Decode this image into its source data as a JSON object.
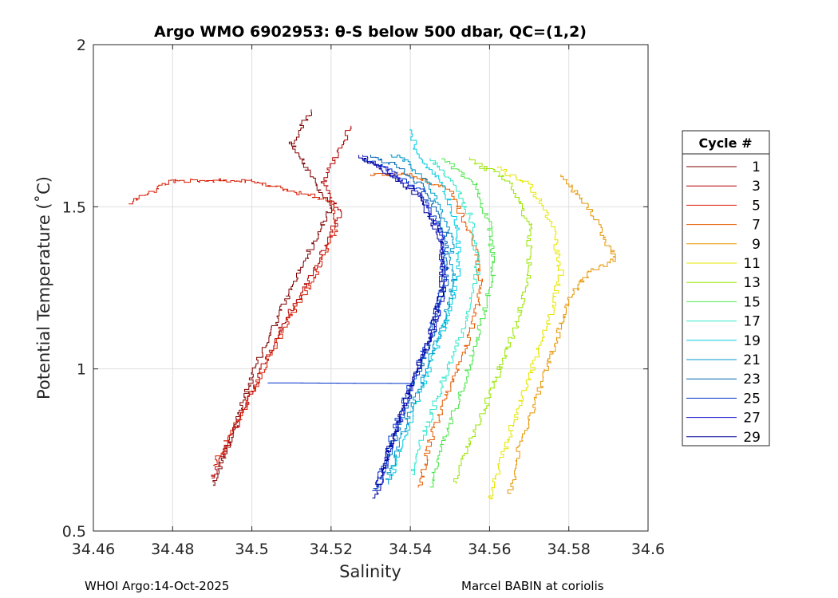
{
  "chart_data": {
    "type": "line",
    "title": "Argo WMO 6902953: θ-S below 500 dbar,  QC=(1,2)",
    "xlabel": "Salinity",
    "ylabel": "Potential Temperature (˚C)",
    "xlim": [
      34.46,
      34.6
    ],
    "ylim": [
      0.5,
      2.0
    ],
    "xticks": [
      "34.46",
      "34.48",
      "34.5",
      "34.52",
      "34.54",
      "34.56",
      "34.58",
      "34.6"
    ],
    "yticks": [
      "0.5",
      "1",
      "1.5",
      "2"
    ],
    "grid": true,
    "legend": {
      "title": "Cycle #",
      "position": "outside-right"
    },
    "series": [
      {
        "name": "1",
        "color": "#7f0000",
        "points": [
          [
            34.49,
            0.64
          ],
          [
            34.495,
            0.8
          ],
          [
            34.5,
            0.98
          ],
          [
            34.505,
            1.12
          ],
          [
            34.51,
            1.25
          ],
          [
            34.515,
            1.38
          ],
          [
            34.52,
            1.5
          ],
          [
            34.515,
            1.6
          ],
          [
            34.51,
            1.7
          ],
          [
            34.515,
            1.8
          ]
        ]
      },
      {
        "name": "3",
        "color": "#b30000",
        "points": [
          [
            34.49,
            0.66
          ],
          [
            34.496,
            0.82
          ],
          [
            34.502,
            0.99
          ],
          [
            34.508,
            1.14
          ],
          [
            34.514,
            1.27
          ],
          [
            34.519,
            1.39
          ],
          [
            34.522,
            1.48
          ],
          [
            34.518,
            1.58
          ],
          [
            34.522,
            1.68
          ],
          [
            34.525,
            1.75
          ]
        ]
      },
      {
        "name": "5",
        "color": "#d91a00",
        "points": [
          [
            34.49,
            0.7
          ],
          [
            34.497,
            0.85
          ],
          [
            34.503,
            1.0
          ],
          [
            34.509,
            1.15
          ],
          [
            34.516,
            1.29
          ],
          [
            34.521,
            1.42
          ],
          [
            34.52,
            1.52
          ],
          [
            34.5,
            1.58
          ],
          [
            34.48,
            1.58
          ],
          [
            34.469,
            1.51
          ]
        ]
      },
      {
        "name": "7",
        "color": "#e65c00",
        "points": [
          [
            34.542,
            0.63
          ],
          [
            34.545,
            0.78
          ],
          [
            34.55,
            0.95
          ],
          [
            34.555,
            1.1
          ],
          [
            34.558,
            1.25
          ],
          [
            34.556,
            1.4
          ],
          [
            34.55,
            1.55
          ],
          [
            34.54,
            1.6
          ],
          [
            34.53,
            1.6
          ]
        ]
      },
      {
        "name": "9",
        "color": "#e69500",
        "points": [
          [
            34.565,
            0.62
          ],
          [
            34.568,
            0.78
          ],
          [
            34.573,
            0.95
          ],
          [
            34.577,
            1.1
          ],
          [
            34.58,
            1.22
          ],
          [
            34.585,
            1.3
          ],
          [
            34.592,
            1.34
          ],
          [
            34.585,
            1.5
          ],
          [
            34.578,
            1.6
          ]
        ]
      },
      {
        "name": "11",
        "color": "#e6e600",
        "points": [
          [
            34.56,
            0.6
          ],
          [
            34.565,
            0.8
          ],
          [
            34.57,
            0.98
          ],
          [
            34.575,
            1.15
          ],
          [
            34.578,
            1.3
          ],
          [
            34.576,
            1.45
          ],
          [
            34.57,
            1.57
          ],
          [
            34.562,
            1.62
          ]
        ]
      },
      {
        "name": "13",
        "color": "#99e600",
        "points": [
          [
            34.551,
            0.65
          ],
          [
            34.556,
            0.8
          ],
          [
            34.562,
            0.98
          ],
          [
            34.567,
            1.15
          ],
          [
            34.57,
            1.3
          ],
          [
            34.57,
            1.45
          ],
          [
            34.565,
            1.58
          ],
          [
            34.555,
            1.65
          ]
        ]
      },
      {
        "name": "15",
        "color": "#4ce64c",
        "points": [
          [
            34.545,
            0.64
          ],
          [
            34.549,
            0.8
          ],
          [
            34.554,
            0.98
          ],
          [
            34.558,
            1.15
          ],
          [
            34.561,
            1.3
          ],
          [
            34.56,
            1.45
          ],
          [
            34.556,
            1.58
          ],
          [
            34.548,
            1.65
          ]
        ]
      },
      {
        "name": "17",
        "color": "#33e6cc",
        "points": [
          [
            34.54,
            0.67
          ],
          [
            34.544,
            0.82
          ],
          [
            34.549,
            0.99
          ],
          [
            34.554,
            1.15
          ],
          [
            34.557,
            1.3
          ],
          [
            34.556,
            1.45
          ],
          [
            34.551,
            1.58
          ],
          [
            34.545,
            1.65
          ]
        ]
      },
      {
        "name": "19",
        "color": "#00cce6",
        "points": [
          [
            34.535,
            0.66
          ],
          [
            34.539,
            0.81
          ],
          [
            34.544,
            0.98
          ],
          [
            34.549,
            1.14
          ],
          [
            34.552,
            1.29
          ],
          [
            34.552,
            1.44
          ],
          [
            34.548,
            1.58
          ],
          [
            34.542,
            1.66
          ],
          [
            34.54,
            1.74
          ]
        ]
      },
      {
        "name": "21",
        "color": "#0099cc",
        "points": [
          [
            34.534,
            0.65
          ],
          [
            34.538,
            0.8
          ],
          [
            34.543,
            0.97
          ],
          [
            34.548,
            1.13
          ],
          [
            34.551,
            1.28
          ],
          [
            34.55,
            1.43
          ],
          [
            34.545,
            1.57
          ],
          [
            34.538,
            1.65
          ],
          [
            34.535,
            1.66
          ]
        ]
      },
      {
        "name": "23",
        "color": "#0066b3",
        "points": [
          [
            34.532,
            0.63
          ],
          [
            34.536,
            0.79
          ],
          [
            34.541,
            0.96
          ],
          [
            34.546,
            1.12
          ],
          [
            34.549,
            1.27
          ],
          [
            34.549,
            1.42
          ],
          [
            34.544,
            1.56
          ],
          [
            34.536,
            1.63
          ],
          [
            34.53,
            1.66
          ]
        ]
      },
      {
        "name": "25",
        "color": "#0033cc",
        "points": [
          [
            34.531,
            0.62
          ],
          [
            34.535,
            0.78
          ],
          [
            34.54,
            0.955
          ],
          [
            34.504,
            0.957
          ],
          [
            34.54,
            0.955
          ],
          [
            34.545,
            1.11
          ],
          [
            34.548,
            1.26
          ],
          [
            34.548,
            1.41
          ],
          [
            34.543,
            1.55
          ],
          [
            34.534,
            1.62
          ],
          [
            34.528,
            1.65
          ]
        ]
      },
      {
        "name": "27",
        "color": "#1a1acc",
        "points": [
          [
            34.532,
            0.64
          ],
          [
            34.536,
            0.8
          ],
          [
            34.541,
            0.97
          ],
          [
            34.546,
            1.12
          ],
          [
            34.549,
            1.27
          ],
          [
            34.548,
            1.42
          ],
          [
            34.542,
            1.55
          ],
          [
            34.533,
            1.62
          ],
          [
            34.528,
            1.66
          ]
        ]
      },
      {
        "name": "29",
        "color": "#000099",
        "points": [
          [
            34.531,
            0.6
          ],
          [
            34.535,
            0.77
          ],
          [
            34.54,
            0.95
          ],
          [
            34.545,
            1.1
          ],
          [
            34.548,
            1.25
          ],
          [
            34.548,
            1.4
          ],
          [
            34.542,
            1.54
          ],
          [
            34.532,
            1.62
          ],
          [
            34.527,
            1.66
          ]
        ]
      }
    ]
  },
  "footer": {
    "left": "WHOI Argo:14-Oct-2025",
    "right": "Marcel BABIN at coriolis"
  }
}
